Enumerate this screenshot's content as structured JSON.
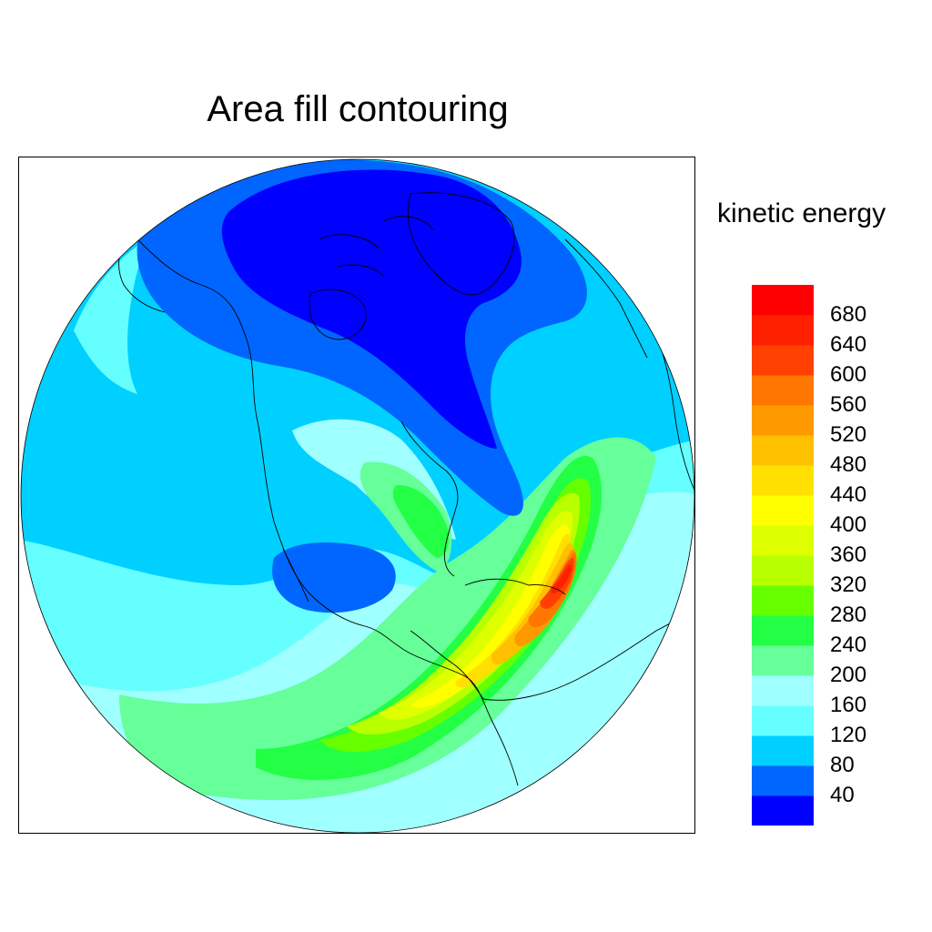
{
  "title": "Area fill contouring",
  "legend": {
    "title": "kinetic energy",
    "levels": [
      "40",
      "80",
      "120",
      "160",
      "200",
      "240",
      "280",
      "320",
      "360",
      "400",
      "440",
      "480",
      "520",
      "560",
      "600",
      "640",
      "680"
    ],
    "colors": [
      "#0000ff",
      "#0066ff",
      "#00d0ff",
      "#66ffff",
      "#a0ffff",
      "#66ff99",
      "#22ff44",
      "#66ff00",
      "#b8ff00",
      "#ddff00",
      "#ffff00",
      "#ffe000",
      "#ffc000",
      "#ff9900",
      "#ff7700",
      "#ff4000",
      "#ff2000",
      "#ff0000"
    ]
  },
  "map": {
    "projection": "orthographic",
    "region": "North America / Caribbean / northern South America",
    "field": "kinetic energy"
  }
}
